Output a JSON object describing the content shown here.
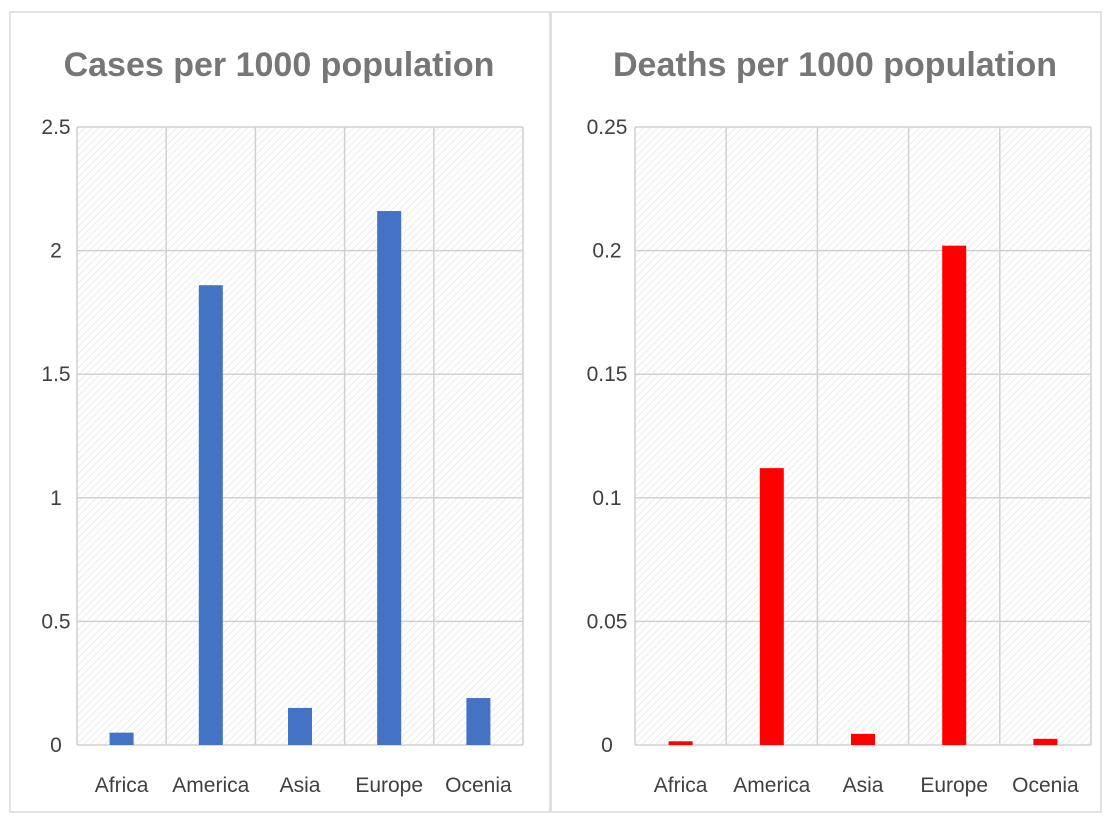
{
  "chart_data": [
    {
      "type": "bar",
      "title": "Cases per 1000 population",
      "xlabel": "",
      "ylabel": "",
      "categories": [
        "Africa",
        "America",
        "Asia",
        "Europe",
        "Ocenia"
      ],
      "values": [
        0.05,
        1.86,
        0.15,
        2.16,
        0.19
      ],
      "ylim": [
        0,
        2.5
      ],
      "yticks": [
        "0",
        "0.5",
        "1",
        "1.5",
        "2",
        "2.5"
      ],
      "yticks_values": [
        0,
        0.5,
        1,
        1.5,
        2,
        2.5
      ],
      "color": "#4472C4",
      "grid": true,
      "legend": "none"
    },
    {
      "type": "bar",
      "title": "Deaths per 1000 population",
      "xlabel": "",
      "ylabel": "",
      "categories": [
        "Africa",
        "America",
        "Asia",
        "Europe",
        "Ocenia"
      ],
      "values": [
        0.0015,
        0.112,
        0.0045,
        0.202,
        0.0025
      ],
      "ylim": [
        0,
        0.25
      ],
      "yticks": [
        "0",
        "0.05",
        "0.1",
        "0.15",
        "0.2",
        "0.25"
      ],
      "yticks_values": [
        0,
        0.05,
        0.1,
        0.15,
        0.2,
        0.25
      ],
      "color": "#FF0000",
      "grid": true,
      "legend": "none"
    }
  ]
}
